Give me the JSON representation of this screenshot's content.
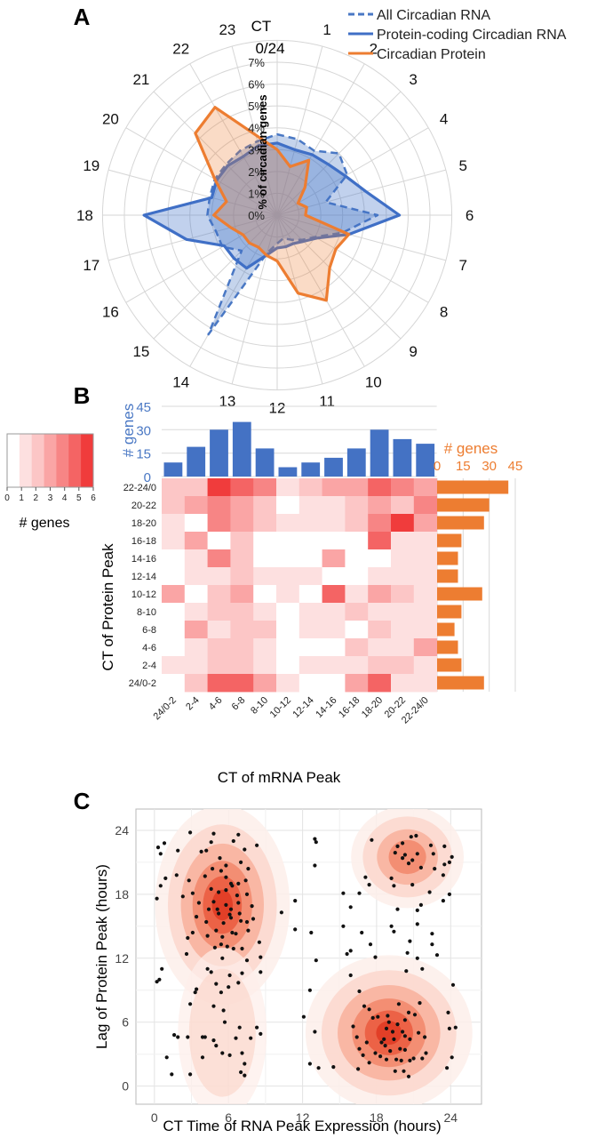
{
  "panel_labels": [
    "A",
    "B",
    "C"
  ],
  "colors": {
    "all_rna": "#4a78c4",
    "protein_coding": "#3f6fc6",
    "protein": "#ed7d31",
    "heat": [
      "#ffffff",
      "#fde0e0",
      "#fcc6c6",
      "#faa5a5",
      "#f78585",
      "#f46464",
      "#f03c3c"
    ]
  },
  "chart_data": [
    {
      "type": "radar",
      "panel": "A",
      "ct_title": [
        "CT",
        "0/24"
      ],
      "angular_labels": [
        "1",
        "2",
        "3",
        "4",
        "5",
        "6",
        "7",
        "8",
        "9",
        "10",
        "11",
        "12",
        "13",
        "14",
        "15",
        "16",
        "17",
        "18",
        "19",
        "20",
        "21",
        "22",
        "23"
      ],
      "radial_ticks": [
        "0%",
        "1%",
        "2%",
        "3%",
        "4%",
        "5%",
        "6%",
        "7%"
      ],
      "rmax": 7,
      "radial_label": "% of circadian genes",
      "legend": [
        "All Circadian RNA",
        "Protein-coding Circadian RNA",
        "Circadian Protein"
      ],
      "series": [
        {
          "name": "All Circadian RNA",
          "style": "dashed",
          "values": [
            3.7,
            3.6,
            3.4,
            4.0,
            3.7,
            2.3,
            4.6,
            3.1,
            2.0,
            1.6,
            1.3,
            1.1,
            1.3,
            1.8,
            6.3,
            2.3,
            2.9,
            2.9,
            3.2,
            3.2,
            3.3,
            3.3,
            3.4,
            3.5
          ]
        },
        {
          "name": "Protein-coding Circadian RNA",
          "style": "solid",
          "values": [
            3.3,
            3.1,
            3.2,
            3.3,
            3.6,
            4.2,
            5.6,
            3.4,
            2.1,
            1.7,
            1.5,
            1.5,
            1.5,
            1.9,
            2.8,
            2.8,
            2.8,
            4.3,
            6.1,
            3.1,
            3.2,
            3.2,
            3.1,
            3.3
          ]
        },
        {
          "name": "Circadian Protein",
          "style": "solid",
          "values": [
            3.0,
            2.3,
            2.9,
            1.8,
            1.1,
            1.4,
            1.3,
            3.4,
            3.1,
            3.4,
            4.5,
            3.7,
            2.1,
            1.9,
            1.7,
            1.8,
            1.8,
            2.2,
            2.9,
            2.4,
            3.3,
            5.3,
            5.7,
            3.8
          ]
        }
      ]
    },
    {
      "type": "heatmap",
      "panel": "B",
      "xlabel": "CT of mRNA Peak",
      "ylabel": "CT of Protein Peak",
      "x_categories": [
        "24/0-2",
        "2-4",
        "4-6",
        "6-8",
        "8-10",
        "10-12",
        "12-14",
        "14-16",
        "16-18",
        "18-20",
        "20-22",
        "22-24/0"
      ],
      "y_categories": [
        "22-24/0",
        "20-22",
        "18-20",
        "16-18",
        "14-16",
        "12-14",
        "10-12",
        "8-10",
        "6-8",
        "4-6",
        "2-4",
        "24/0-2"
      ],
      "matrix": [
        [
          2,
          2,
          6,
          5,
          4,
          1,
          2,
          3,
          3,
          5,
          4,
          3
        ],
        [
          2,
          3,
          4,
          3,
          2,
          0,
          1,
          1,
          2,
          3,
          2,
          4
        ],
        [
          1,
          0,
          4,
          3,
          2,
          1,
          1,
          1,
          2,
          4,
          6,
          3
        ],
        [
          1,
          3,
          0,
          2,
          0,
          0,
          0,
          0,
          0,
          5,
          1,
          1
        ],
        [
          0,
          1,
          4,
          2,
          0,
          0,
          0,
          3,
          0,
          0,
          1,
          1
        ],
        [
          0,
          1,
          1,
          2,
          1,
          1,
          1,
          0,
          0,
          1,
          1,
          1
        ],
        [
          3,
          0,
          2,
          3,
          0,
          1,
          0,
          5,
          1,
          3,
          2,
          1
        ],
        [
          0,
          1,
          2,
          2,
          1,
          0,
          1,
          1,
          2,
          1,
          1,
          1
        ],
        [
          0,
          3,
          1,
          2,
          2,
          0,
          1,
          1,
          0,
          2,
          1,
          1
        ],
        [
          0,
          1,
          2,
          2,
          1,
          0,
          0,
          0,
          2,
          1,
          1,
          3
        ],
        [
          1,
          1,
          2,
          2,
          1,
          0,
          1,
          1,
          1,
          2,
          2,
          1
        ],
        [
          0,
          2,
          5,
          5,
          3,
          1,
          0,
          0,
          3,
          5,
          1,
          1
        ]
      ],
      "color_scale": {
        "min": 0,
        "max": 6,
        "ticks": [
          "0",
          "1",
          "2",
          "3",
          "4",
          "5",
          "6"
        ],
        "label": "# genes"
      },
      "top_bars": {
        "label": "# genes",
        "ticks": [
          "0",
          "15",
          "30",
          "45"
        ],
        "max": 45,
        "values": [
          9,
          19,
          30,
          35,
          18,
          6,
          9,
          12,
          18,
          30,
          24,
          21
        ]
      },
      "right_bars": {
        "label": "# genes",
        "ticks": [
          "0",
          "15",
          "30",
          "45"
        ],
        "max": 45,
        "values": [
          41,
          30,
          27,
          14,
          12,
          12,
          26,
          14,
          10,
          12,
          14,
          27
        ]
      }
    },
    {
      "type": "scatter",
      "panel": "C",
      "xlabel": "CT Time of RNA Peak Expression (hours)",
      "ylabel": "Lag of Protein Peak (hours)",
      "xlim": [
        -1.5,
        26.5
      ],
      "ylim": [
        -1.7,
        26.0
      ],
      "xticks": [
        "0",
        "6",
        "12",
        "18",
        "24"
      ],
      "yticks": [
        "0",
        "6",
        "12",
        "18",
        "24"
      ],
      "density_centers": [
        {
          "x": 5.5,
          "y": 17.0,
          "sx": 2.1,
          "sy": 3.6
        },
        {
          "x": 19.0,
          "y": 5.0,
          "sx": 2.6,
          "sy": 2.8
        },
        {
          "x": 20.5,
          "y": 21.5,
          "sx": 1.9,
          "sy": 2.0
        },
        {
          "x": 5.5,
          "y": 5.0,
          "sx": 1.8,
          "sy": 4.0
        }
      ],
      "points": [
        [
          0.3,
          22.4
        ],
        [
          0.8,
          22.8
        ],
        [
          0.5,
          18.8
        ],
        [
          0.9,
          19.5
        ],
        [
          0.2,
          17.6
        ],
        [
          0.6,
          11.0
        ],
        [
          0.4,
          10.0
        ],
        [
          0.2,
          9.8
        ],
        [
          0.5,
          21.8
        ],
        [
          1.0,
          2.7
        ],
        [
          1.6,
          4.8
        ],
        [
          1.9,
          4.6
        ],
        [
          1.4,
          1.1
        ],
        [
          1.9,
          22.1
        ],
        [
          2.3,
          17.8
        ],
        [
          2.8,
          19.3
        ],
        [
          1.8,
          19.8
        ],
        [
          3.1,
          14.4
        ],
        [
          3.4,
          15.9
        ],
        [
          2.6,
          12.4
        ],
        [
          2.7,
          13.9
        ],
        [
          3.8,
          22.0
        ],
        [
          2.9,
          23.8
        ],
        [
          3.1,
          18.1
        ],
        [
          3.6,
          17.2
        ],
        [
          4.6,
          18.5
        ],
        [
          4.2,
          15.4
        ],
        [
          4.7,
          20.4
        ],
        [
          4.1,
          19.7
        ],
        [
          3.4,
          9.1
        ],
        [
          3.3,
          8.8
        ],
        [
          3.9,
          4.6
        ],
        [
          4.1,
          4.6
        ],
        [
          3.9,
          2.7
        ],
        [
          2.7,
          4.6
        ],
        [
          2.9,
          7.7
        ],
        [
          2.9,
          1.1
        ],
        [
          4.2,
          22.1
        ],
        [
          4.6,
          22.9
        ],
        [
          5.4,
          20.2
        ],
        [
          5.8,
          19.6
        ],
        [
          5.3,
          21.4
        ],
        [
          6.2,
          19.0
        ],
        [
          5.8,
          18.4
        ],
        [
          4.8,
          17.3
        ],
        [
          5.2,
          16.2
        ],
        [
          5.8,
          17.0
        ],
        [
          6.1,
          16.1
        ],
        [
          5.6,
          15.3
        ],
        [
          5.0,
          14.6
        ],
        [
          5.5,
          14.0
        ],
        [
          6.3,
          14.4
        ],
        [
          5.9,
          13.1
        ],
        [
          6.4,
          12.9
        ],
        [
          5.5,
          12.0
        ],
        [
          4.3,
          11.0
        ],
        [
          4.6,
          10.7
        ],
        [
          5.0,
          9.6
        ],
        [
          5.4,
          8.8
        ],
        [
          4.8,
          7.5
        ],
        [
          5.6,
          7.1
        ],
        [
          5.7,
          6.0
        ],
        [
          4.8,
          4.3
        ],
        [
          5.0,
          3.8
        ],
        [
          5.5,
          3.1
        ],
        [
          6.1,
          2.9
        ],
        [
          6.4,
          23.0
        ],
        [
          7.3,
          22.2
        ],
        [
          7.0,
          21.0
        ],
        [
          7.6,
          20.4
        ],
        [
          6.8,
          19.0
        ],
        [
          7.5,
          18.0
        ],
        [
          7.9,
          16.9
        ],
        [
          6.9,
          16.2
        ],
        [
          7.0,
          15.5
        ],
        [
          7.6,
          14.6
        ],
        [
          6.6,
          14.3
        ],
        [
          8.0,
          15.7
        ],
        [
          7.1,
          12.9
        ],
        [
          8.5,
          13.5
        ],
        [
          8.6,
          12.1
        ],
        [
          7.5,
          11.8
        ],
        [
          7.1,
          10.6
        ],
        [
          6.8,
          9.7
        ],
        [
          6.9,
          5.5
        ],
        [
          6.6,
          4.5
        ],
        [
          7.8,
          4.5
        ],
        [
          7.1,
          3.1
        ],
        [
          7.3,
          2.1
        ],
        [
          7.0,
          1.3
        ],
        [
          7.3,
          1.0
        ],
        [
          8.3,
          22.6
        ],
        [
          10.3,
          16.3
        ],
        [
          8.6,
          10.7
        ],
        [
          8.3,
          5.5
        ],
        [
          8.6,
          4.9
        ],
        [
          6.0,
          9.3
        ],
        [
          6.1,
          10.4
        ],
        [
          6.3,
          18.8
        ],
        [
          6.2,
          16.6
        ],
        [
          4.4,
          16.6
        ],
        [
          6.7,
          17.9
        ],
        [
          5.8,
          20.7
        ],
        [
          6.8,
          23.6
        ],
        [
          4.8,
          23.7
        ],
        [
          4.3,
          14.1
        ],
        [
          5.2,
          18.2
        ],
        [
          4.9,
          13.0
        ],
        [
          7.5,
          15.4
        ],
        [
          5.4,
          13.3
        ],
        [
          6.2,
          15.8
        ],
        [
          5.1,
          16.6
        ],
        [
          6.8,
          17.2
        ],
        [
          7.4,
          19.3
        ],
        [
          12.6,
          9.0
        ],
        [
          13.1,
          11.8
        ],
        [
          12.1,
          6.5
        ],
        [
          11.4,
          17.4
        ],
        [
          11.4,
          14.7
        ],
        [
          12.7,
          14.4
        ],
        [
          13.0,
          23.2
        ],
        [
          13.1,
          22.9
        ],
        [
          13.0,
          20.7
        ],
        [
          13.0,
          5.1
        ],
        [
          12.6,
          2.1
        ],
        [
          13.3,
          1.7
        ],
        [
          14.5,
          1.8
        ],
        [
          15.3,
          18.1
        ],
        [
          15.9,
          16.8
        ],
        [
          16.6,
          18.1
        ],
        [
          15.3,
          15.0
        ],
        [
          15.6,
          12.4
        ],
        [
          15.9,
          12.7
        ],
        [
          15.9,
          10.4
        ],
        [
          16.6,
          8.9
        ],
        [
          16.4,
          4.6
        ],
        [
          16.6,
          3.5
        ],
        [
          16.5,
          1.6
        ],
        [
          16.9,
          2.9
        ],
        [
          16.1,
          5.6
        ],
        [
          17.6,
          23.1
        ],
        [
          17.1,
          19.6
        ],
        [
          17.4,
          18.9
        ],
        [
          16.8,
          14.4
        ],
        [
          17.5,
          13.3
        ],
        [
          17.9,
          12.1
        ],
        [
          17.0,
          7.5
        ],
        [
          17.4,
          7.2
        ],
        [
          17.7,
          6.4
        ],
        [
          17.9,
          3.1
        ],
        [
          17.4,
          2.2
        ],
        [
          17.2,
          4.1
        ],
        [
          18.4,
          4.1
        ],
        [
          18.7,
          3.8
        ],
        [
          18.3,
          2.8
        ],
        [
          18.8,
          2.5
        ],
        [
          18.1,
          6.5
        ],
        [
          18.8,
          5.4
        ],
        [
          19.0,
          6.0
        ],
        [
          19.4,
          4.4
        ],
        [
          19.1,
          3.3
        ],
        [
          19.7,
          5.8
        ],
        [
          19.6,
          2.5
        ],
        [
          19.5,
          1.4
        ],
        [
          19.9,
          3.5
        ],
        [
          20.0,
          2.4
        ],
        [
          20.3,
          3.4
        ],
        [
          20.7,
          2.4
        ],
        [
          20.2,
          1.4
        ],
        [
          20.6,
          0.9
        ],
        [
          21.0,
          2.6
        ],
        [
          20.1,
          5.1
        ],
        [
          20.3,
          6.2
        ],
        [
          20.6,
          6.9
        ],
        [
          21.1,
          6.7
        ],
        [
          21.4,
          5.0
        ],
        [
          21.5,
          7.8
        ],
        [
          20.7,
          4.4
        ],
        [
          21.9,
          4.6
        ],
        [
          21.7,
          2.6
        ],
        [
          22.0,
          3.1
        ],
        [
          18.6,
          4.4
        ],
        [
          20.3,
          4.7
        ],
        [
          19.3,
          5.1
        ],
        [
          18.9,
          6.6
        ],
        [
          19.8,
          7.7
        ],
        [
          20.4,
          10.8
        ],
        [
          20.5,
          12.5
        ],
        [
          20.7,
          13.6
        ],
        [
          21.3,
          12.0
        ],
        [
          21.7,
          11.0
        ],
        [
          22.5,
          13.3
        ],
        [
          22.9,
          12.3
        ],
        [
          22.5,
          14.3
        ],
        [
          21.3,
          15.2
        ],
        [
          21.3,
          16.5
        ],
        [
          22.3,
          18.2
        ],
        [
          21.6,
          17.0
        ],
        [
          20.9,
          18.9
        ],
        [
          19.4,
          14.5
        ],
        [
          19.2,
          15.0
        ],
        [
          19.7,
          16.6
        ],
        [
          19.2,
          19.5
        ],
        [
          19.4,
          18.8
        ],
        [
          19.7,
          22.5
        ],
        [
          19.5,
          21.9
        ],
        [
          20.1,
          21.4
        ],
        [
          20.3,
          21.7
        ],
        [
          20.9,
          21.2
        ],
        [
          20.6,
          20.9
        ],
        [
          21.3,
          21.8
        ],
        [
          21.6,
          20.5
        ],
        [
          20.1,
          22.8
        ],
        [
          20.8,
          23.4
        ],
        [
          21.2,
          23.5
        ],
        [
          22.4,
          22.6
        ],
        [
          22.6,
          21.8
        ],
        [
          22.7,
          20.4
        ],
        [
          23.4,
          19.8
        ],
        [
          23.5,
          20.8
        ],
        [
          23.9,
          21.0
        ],
        [
          24.1,
          21.5
        ],
        [
          23.5,
          22.5
        ],
        [
          23.9,
          18.0
        ],
        [
          23.4,
          17.4
        ],
        [
          23.8,
          6.9
        ],
        [
          23.9,
          5.4
        ],
        [
          24.4,
          5.5
        ],
        [
          23.7,
          1.7
        ],
        [
          24.1,
          2.7
        ],
        [
          24.2,
          9.5
        ]
      ]
    }
  ]
}
